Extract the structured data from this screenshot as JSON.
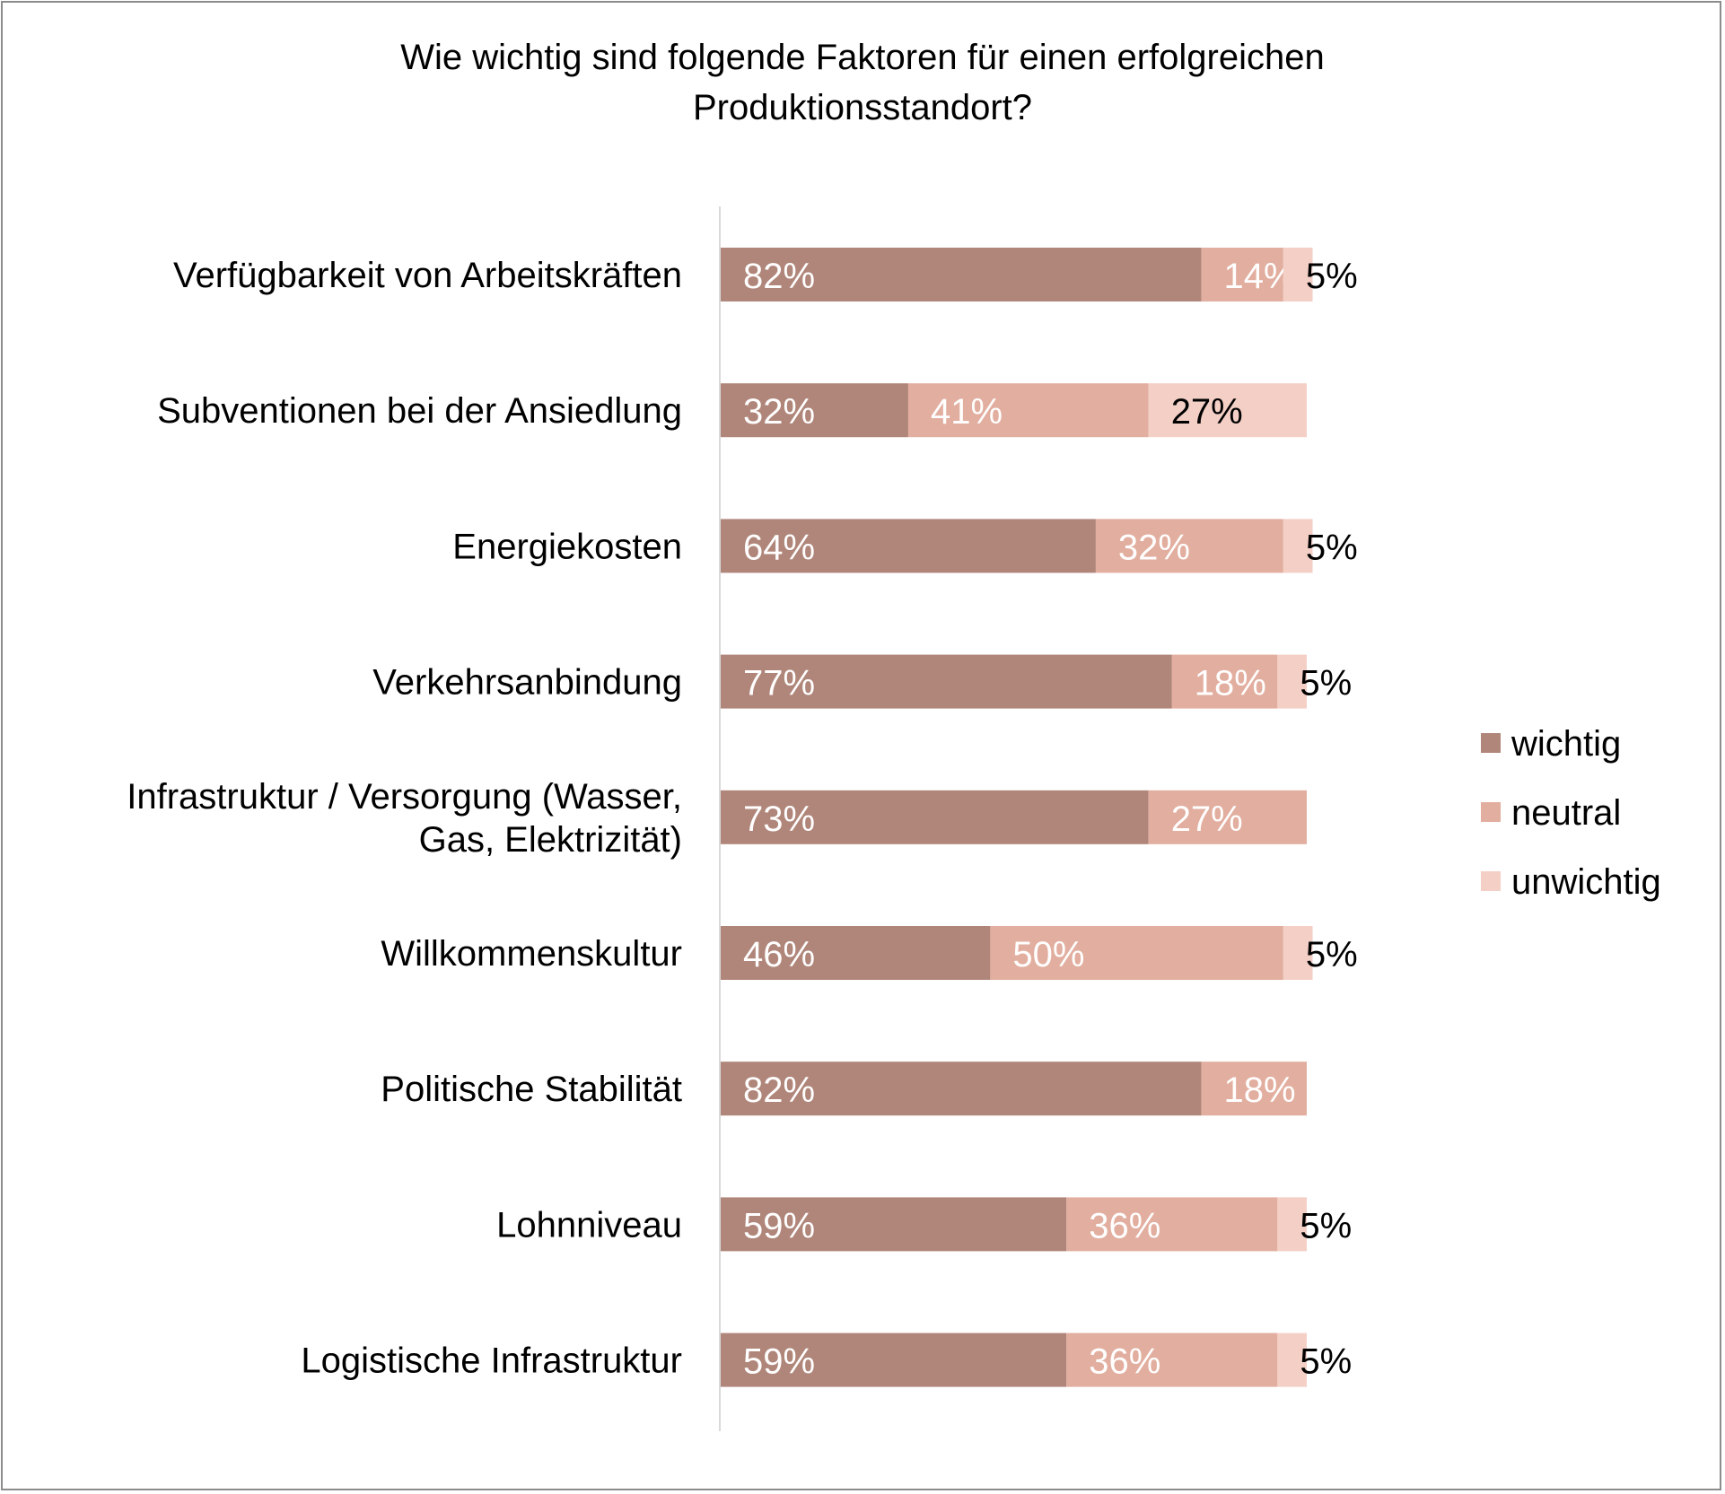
{
  "chart_data": {
    "type": "bar",
    "orientation": "horizontal",
    "stacked": true,
    "title_lines": [
      "Wie wichtig sind folgende Faktoren für einen erfolgreichen",
      "Produktionsstandort?"
    ],
    "categories": [
      [
        "Verfügbarkeit von Arbeitskräften"
      ],
      [
        "Subventionen bei der Ansiedlung"
      ],
      [
        "Energiekosten"
      ],
      [
        "Verkehrsanbindung"
      ],
      [
        "Infrastruktur / Versorgung (Wasser,",
        "Gas, Elektrizität)"
      ],
      [
        "Willkommenskultur"
      ],
      [
        "Politische Stabilität"
      ],
      [
        "Lohnniveau"
      ],
      [
        "Logistische Infrastruktur"
      ]
    ],
    "series": [
      {
        "name": "wichtig",
        "color": "#b0867a",
        "label_color": "#ffffff",
        "values": [
          82,
          32,
          64,
          77,
          73,
          46,
          82,
          59,
          59
        ]
      },
      {
        "name": "neutral",
        "color": "#e2ae9f",
        "label_color": "#ffffff",
        "values": [
          14,
          41,
          32,
          18,
          27,
          50,
          18,
          36,
          36
        ]
      },
      {
        "name": "unwichtig",
        "color": "#f4cfc6",
        "label_color": "#000000",
        "values": [
          5,
          27,
          5,
          5,
          0,
          5,
          0,
          5,
          5
        ]
      }
    ],
    "data_labels": [
      [
        "82%",
        "14%",
        "5%"
      ],
      [
        "32%",
        "41%",
        "27%"
      ],
      [
        "64%",
        "32%",
        "5%"
      ],
      [
        "77%",
        "18%",
        "5%"
      ],
      [
        "73%",
        "27%",
        null
      ],
      [
        "46%",
        "50%",
        "5%"
      ],
      [
        "82%",
        "18%",
        null
      ],
      [
        "59%",
        "36%",
        "5%"
      ],
      [
        "59%",
        "36%",
        "5%"
      ]
    ],
    "xlim": [
      0,
      100
    ],
    "unit": "%",
    "axis_color": "#d9d9d9",
    "legend_position": "right",
    "grid": false
  }
}
